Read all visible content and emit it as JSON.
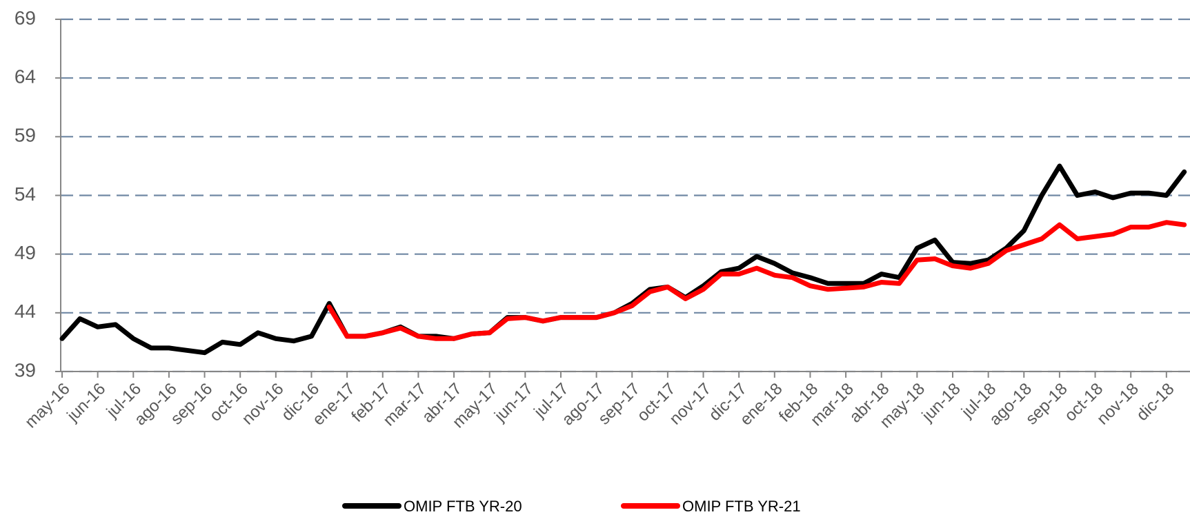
{
  "chart_data": {
    "type": "line",
    "categories": [
      "may-16",
      null,
      "jun-16",
      null,
      "jul-16",
      null,
      "ago-16",
      null,
      "sep-16",
      null,
      "oct-16",
      null,
      "nov-16",
      null,
      "dic-16",
      null,
      "ene-17",
      null,
      "feb-17",
      null,
      "mar-17",
      null,
      "abr-17",
      null,
      "may-17",
      null,
      "jun-17",
      null,
      "jul-17",
      null,
      "ago-17",
      null,
      "sep-17",
      null,
      "oct-17",
      null,
      "nov-17",
      null,
      "dic-17",
      null,
      "ene-18",
      null,
      "feb-18",
      null,
      "mar-18",
      null,
      "abr-18",
      null,
      "may-18",
      null,
      "jun-18",
      null,
      "jul-18",
      null,
      "ago-18",
      null,
      "sep-18",
      null,
      "oct-18",
      null,
      "nov-18",
      null,
      "dic-18",
      null
    ],
    "series": [
      {
        "name": "OMIP FTB YR-20",
        "color": "#000000",
        "values": [
          41.8,
          43.5,
          42.8,
          43.0,
          41.8,
          41.0,
          41.0,
          40.8,
          40.6,
          41.5,
          41.3,
          42.3,
          41.8,
          41.6,
          42.0,
          44.8,
          42.0,
          42.0,
          42.3,
          42.8,
          42.0,
          42.0,
          41.8,
          42.2,
          42.3,
          43.6,
          43.6,
          43.3,
          43.6,
          43.6,
          43.6,
          44.0,
          44.8,
          46.0,
          46.2,
          45.3,
          46.3,
          47.5,
          47.8,
          48.8,
          48.2,
          47.4,
          47.0,
          46.5,
          46.5,
          46.5,
          47.3,
          47.0,
          49.5,
          50.2,
          48.3,
          48.2,
          48.5,
          49.5,
          51.0,
          54.0,
          56.5,
          54.0,
          54.3,
          53.8,
          54.2,
          54.2,
          54.0,
          56.0
        ]
      },
      {
        "name": "OMIP FTB YR-21",
        "color": "#ff0000",
        "values": [
          null,
          null,
          null,
          null,
          null,
          null,
          null,
          null,
          null,
          null,
          null,
          null,
          null,
          null,
          null,
          44.5,
          42.0,
          42.0,
          42.3,
          42.7,
          42.0,
          41.8,
          41.8,
          42.2,
          42.3,
          43.5,
          43.6,
          43.3,
          43.6,
          43.6,
          43.6,
          44.0,
          44.6,
          45.8,
          46.2,
          45.2,
          46.0,
          47.3,
          47.3,
          47.8,
          47.2,
          47.0,
          46.3,
          46.0,
          46.1,
          46.2,
          46.6,
          46.5,
          48.5,
          48.6,
          48.0,
          47.8,
          48.2,
          49.3,
          49.8,
          50.3,
          51.5,
          50.3,
          50.5,
          50.7,
          51.3,
          51.3,
          51.7,
          51.5
        ]
      }
    ],
    "ylim": [
      39,
      69
    ],
    "yticks": [
      39,
      44,
      49,
      54,
      59,
      64,
      69
    ],
    "grid": true,
    "legend": "bottom"
  }
}
